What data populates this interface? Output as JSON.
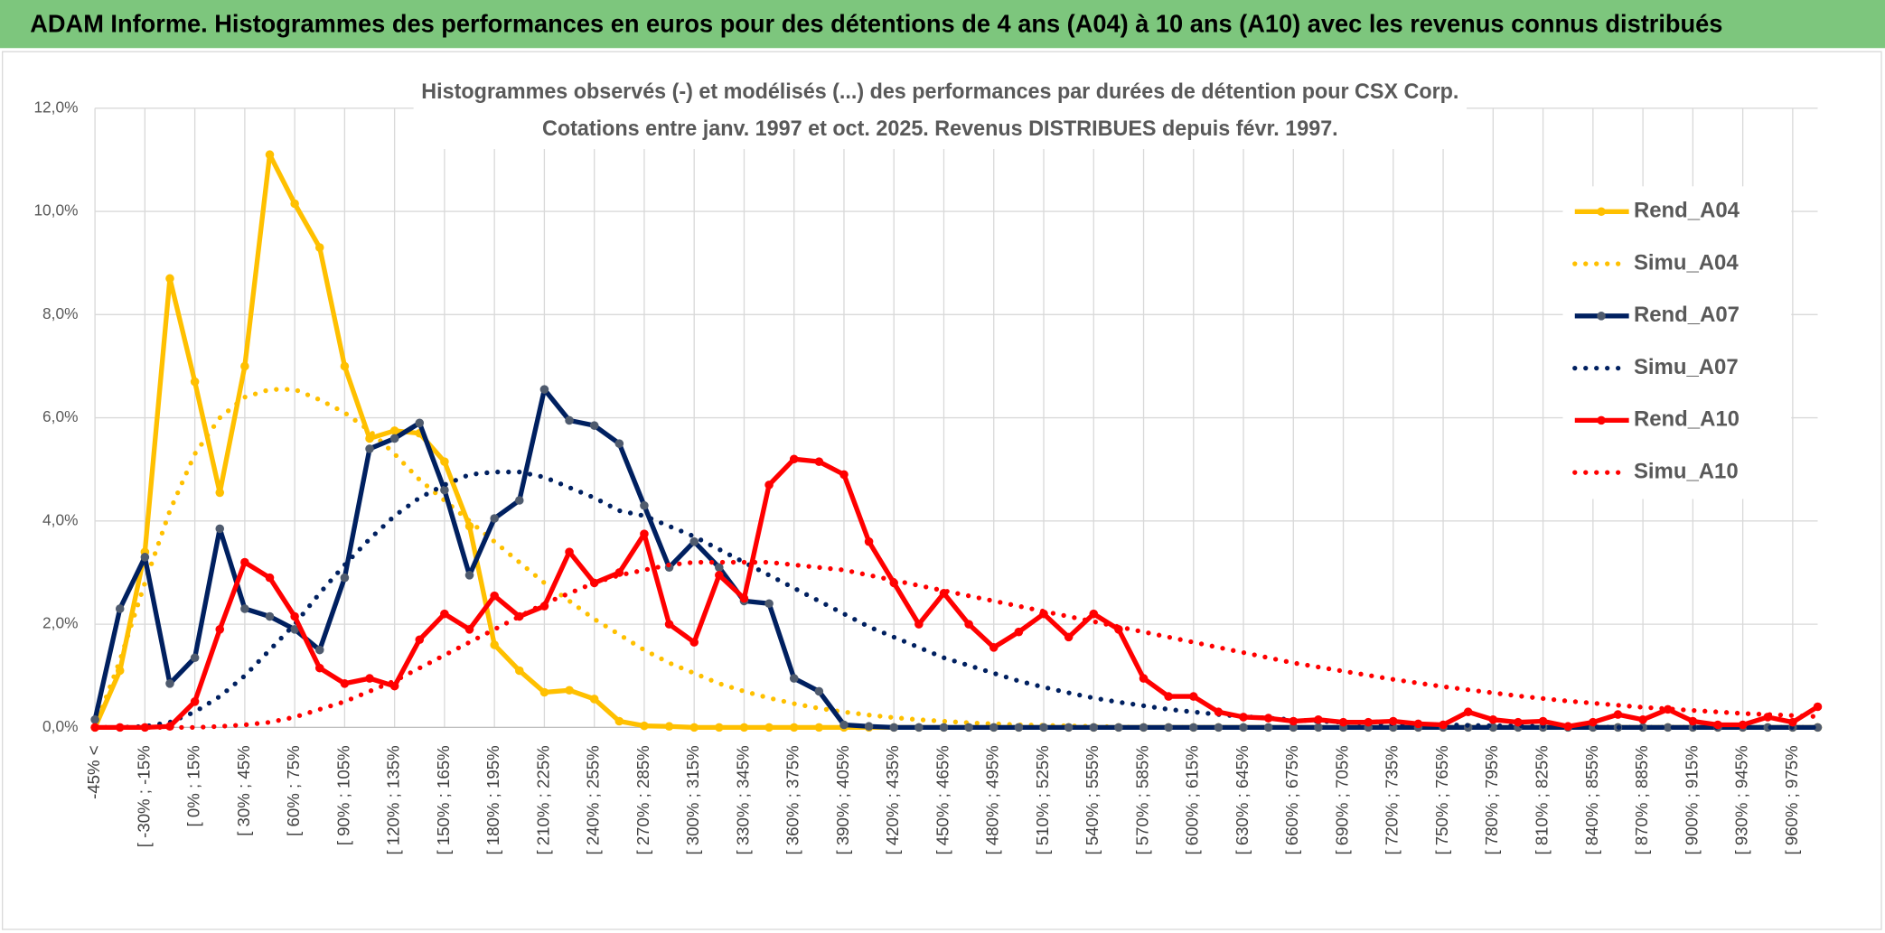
{
  "header": {
    "title": "ADAM Informe. Histogrammes des performances en euros pour des détentions de 4 ans (A04) à 10 ans (A10) avec les revenus connus distribués"
  },
  "chart_data": {
    "type": "line",
    "title": "Histogrammes observés (-) et modélisés (...) des performances par durées de détention pour CSX Corp.",
    "subtitle": "Cotations entre janv. 1997 et oct. 2025. Revenus DISTRIBUES depuis févr. 1997.",
    "categories": [
      "-45% <",
      null,
      "[ -30% ; -15%",
      null,
      "[ 0% ; 15%",
      null,
      "[ 30% ; 45%",
      null,
      "[ 60% ; 75%",
      null,
      "[ 90% ; 105%",
      null,
      "[ 120% ; 135%",
      null,
      "[ 150% ; 165%",
      null,
      "[ 180% ; 195%",
      null,
      "[ 210% ; 225%",
      null,
      "[ 240% ; 255%",
      null,
      "[ 270% ; 285%",
      null,
      "[ 300% ; 315%",
      null,
      "[ 330% ; 345%",
      null,
      "[ 360% ; 375%",
      null,
      "[ 390% ; 405%",
      null,
      "[ 420% ; 435%",
      null,
      "[ 450% ; 465%",
      null,
      "[ 480% ; 495%",
      null,
      "[ 510% ; 525%",
      null,
      "[ 540% ; 555%",
      null,
      "[ 570% ; 585%",
      null,
      "[ 600% ; 615%",
      null,
      "[ 630% ; 645%",
      null,
      "[ 660% ; 675%",
      null,
      "[ 690% ; 705%",
      null,
      "[ 720% ; 735%",
      null,
      "[ 750% ; 765%",
      null,
      "[ 780% ; 795%",
      null,
      "[ 810% ; 825%",
      null,
      "[ 840% ; 855%",
      null,
      "[ 870% ; 885%",
      null,
      "[ 900% ; 915%",
      null,
      "[ 930% ; 945%",
      null,
      "[ 960% ; 975%",
      null
    ],
    "series": [
      {
        "name": "Rend_A04",
        "color": "#FFC000",
        "style": "solid",
        "markers": true,
        "values": [
          0,
          1.1,
          3.4,
          8.7,
          6.7,
          4.55,
          7.0,
          11.1,
          10.15,
          9.3,
          7.0,
          5.6,
          5.75,
          5.7,
          5.15,
          3.9,
          1.6,
          1.1,
          0.68,
          0.72,
          0.55,
          0.12,
          0.03,
          0.02,
          0,
          0,
          0,
          0,
          0,
          0,
          0,
          0,
          0,
          0,
          0,
          0,
          0,
          0,
          0,
          0,
          0,
          0,
          0,
          0,
          0,
          0,
          0,
          0,
          0,
          0,
          0,
          0,
          0,
          0,
          0,
          0,
          0,
          0,
          0,
          0,
          0,
          0,
          0,
          0,
          0,
          0,
          0,
          0,
          0,
          0
        ]
      },
      {
        "name": "Simu_A04",
        "color": "#FFC000",
        "style": "dotted",
        "markers": false,
        "values": [
          0,
          1.3,
          2.8,
          4.2,
          5.3,
          6.0,
          6.4,
          6.55,
          6.55,
          6.35,
          6.1,
          5.75,
          5.3,
          4.8,
          4.4,
          4.0,
          3.6,
          3.2,
          2.8,
          2.45,
          2.1,
          1.8,
          1.5,
          1.25,
          1.05,
          0.85,
          0.7,
          0.57,
          0.46,
          0.37,
          0.3,
          0.24,
          0.19,
          0.15,
          0.12,
          0.09,
          0.07,
          0.05,
          0.04,
          0.03,
          0.02,
          0.01,
          0,
          0,
          0,
          0,
          0,
          0,
          0,
          0,
          0,
          0,
          0,
          0,
          0,
          0,
          0,
          0,
          0,
          0,
          0,
          0,
          0,
          0,
          0,
          0,
          0,
          0,
          0,
          0
        ]
      },
      {
        "name": "Rend_A07",
        "color": "#002060",
        "markerColor": "#4F5B6E",
        "style": "solid",
        "markers": true,
        "values": [
          0.15,
          2.3,
          3.3,
          0.85,
          1.35,
          3.85,
          2.3,
          2.15,
          1.9,
          1.5,
          2.9,
          5.4,
          5.6,
          5.9,
          4.6,
          2.95,
          4.05,
          4.4,
          6.55,
          5.95,
          5.85,
          5.5,
          4.3,
          3.1,
          3.6,
          3.1,
          2.45,
          2.4,
          0.95,
          0.7,
          0.05,
          0.02,
          0,
          0,
          0,
          0,
          0,
          0,
          0,
          0,
          0,
          0,
          0,
          0,
          0,
          0,
          0,
          0,
          0,
          0,
          0,
          0,
          0,
          0,
          0,
          0,
          0,
          0,
          0,
          0,
          0,
          0,
          0,
          0,
          0,
          0,
          0,
          0,
          0,
          0
        ]
      },
      {
        "name": "Simu_A07",
        "color": "#002060",
        "style": "dotted",
        "markers": false,
        "values": [
          0,
          0,
          0.02,
          0.1,
          0.3,
          0.6,
          1.0,
          1.5,
          2.0,
          2.6,
          3.15,
          3.65,
          4.1,
          4.45,
          4.7,
          4.9,
          4.95,
          4.95,
          4.85,
          4.65,
          4.45,
          4.2,
          4.1,
          3.9,
          3.7,
          3.45,
          3.2,
          2.95,
          2.7,
          2.45,
          2.2,
          1.95,
          1.75,
          1.55,
          1.35,
          1.2,
          1.05,
          0.9,
          0.78,
          0.67,
          0.57,
          0.49,
          0.42,
          0.35,
          0.3,
          0.25,
          0.21,
          0.18,
          0.15,
          0.12,
          0.1,
          0.08,
          0.07,
          0.06,
          0.05,
          0.04,
          0.03,
          0.03,
          0.02,
          0.02,
          0.01,
          0,
          0,
          0,
          0,
          0,
          0,
          0,
          0,
          0
        ]
      },
      {
        "name": "Rend_A10",
        "color": "#FF0000",
        "style": "solid",
        "markers": true,
        "values": [
          0,
          0,
          0,
          0.02,
          0.5,
          1.9,
          3.2,
          2.9,
          2.15,
          1.15,
          0.85,
          0.95,
          0.8,
          1.7,
          2.2,
          1.9,
          2.55,
          2.15,
          2.35,
          3.4,
          2.8,
          3.0,
          3.75,
          2.0,
          1.65,
          2.95,
          2.5,
          4.7,
          5.2,
          5.15,
          4.9,
          3.6,
          2.8,
          2.0,
          2.6,
          2.0,
          1.55,
          1.85,
          2.2,
          1.75,
          2.2,
          1.9,
          0.95,
          0.6,
          0.6,
          0.3,
          0.2,
          0.18,
          0.12,
          0.15,
          0.1,
          0.1,
          0.12,
          0.07,
          0.05,
          0.3,
          0.15,
          0.1,
          0.12,
          0.02,
          0.1,
          0.25,
          0.15,
          0.35,
          0.12,
          0.05,
          0.05,
          0.2,
          0.1,
          0.4
        ]
      },
      {
        "name": "Simu_A10",
        "color": "#FF0000",
        "style": "dotted",
        "markers": false,
        "values": [
          0,
          0,
          0,
          0,
          0,
          0.02,
          0.05,
          0.1,
          0.2,
          0.35,
          0.5,
          0.7,
          0.9,
          1.15,
          1.4,
          1.65,
          1.9,
          2.15,
          2.4,
          2.6,
          2.8,
          2.95,
          3.05,
          3.15,
          3.2,
          3.2,
          3.2,
          3.2,
          3.15,
          3.1,
          3.05,
          2.95,
          2.85,
          2.75,
          2.65,
          2.55,
          2.45,
          2.35,
          2.25,
          2.15,
          2.05,
          1.95,
          1.85,
          1.75,
          1.65,
          1.55,
          1.45,
          1.35,
          1.25,
          1.17,
          1.09,
          1.01,
          0.93,
          0.86,
          0.79,
          0.73,
          0.67,
          0.61,
          0.56,
          0.51,
          0.47,
          0.43,
          0.39,
          0.36,
          0.33,
          0.3,
          0.27,
          0.25,
          0.23,
          0.21
        ]
      }
    ],
    "ylim": [
      0,
      12
    ],
    "yticks": [
      {
        "value": 0,
        "label": "0,0%"
      },
      {
        "value": 2,
        "label": "2,0%"
      },
      {
        "value": 4,
        "label": "4,0%"
      },
      {
        "value": 6,
        "label": "6,0%"
      },
      {
        "value": 8,
        "label": "8,0%"
      },
      {
        "value": 10,
        "label": "10,0%"
      },
      {
        "value": 12,
        "label": "12,0%"
      }
    ],
    "grid": true,
    "legend": "right"
  }
}
